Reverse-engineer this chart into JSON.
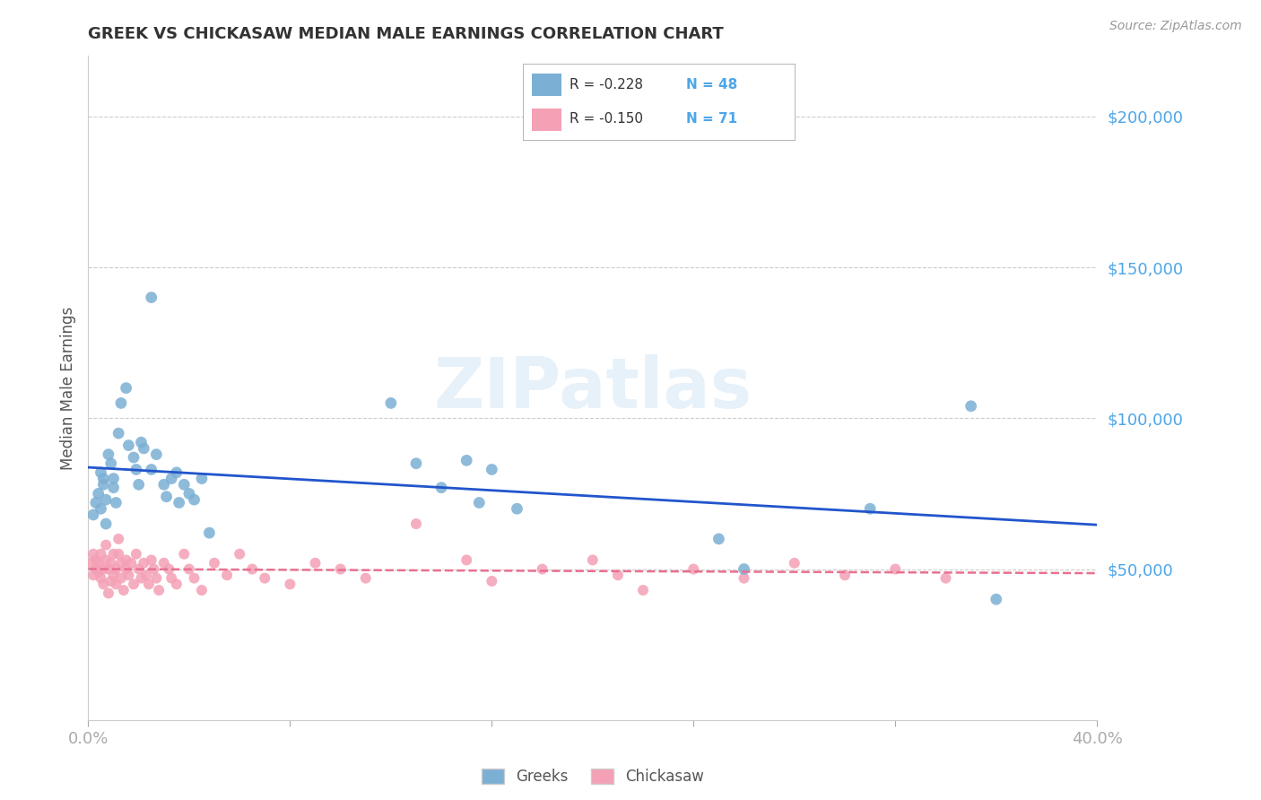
{
  "title": "GREEK VS CHICKASAW MEDIAN MALE EARNINGS CORRELATION CHART",
  "source": "Source: ZipAtlas.com",
  "ylabel": "Median Male Earnings",
  "xlim": [
    0.0,
    0.4
  ],
  "ylim": [
    0,
    220000
  ],
  "yticks": [
    50000,
    100000,
    150000,
    200000
  ],
  "xticks": [
    0.0,
    0.08,
    0.16,
    0.24,
    0.32,
    0.4
  ],
  "xtick_labels": [
    "0.0%",
    "",
    "",
    "",
    "",
    "40.0%"
  ],
  "greek_color": "#7bafd4",
  "chickasaw_color": "#f4a0b5",
  "greek_line_color": "#2255cc",
  "chickasaw_line_color": "#e87090",
  "watermark": "ZIPatlas",
  "legend_r_greek": "-0.228",
  "legend_n_greek": "48",
  "legend_r_chickasaw": "-0.150",
  "legend_n_chickasaw": "71",
  "greek_x": [
    0.002,
    0.003,
    0.004,
    0.005,
    0.005,
    0.006,
    0.006,
    0.007,
    0.007,
    0.008,
    0.009,
    0.01,
    0.01,
    0.011,
    0.012,
    0.013,
    0.015,
    0.016,
    0.018,
    0.019,
    0.02,
    0.021,
    0.022,
    0.025,
    0.025,
    0.027,
    0.03,
    0.031,
    0.033,
    0.035,
    0.036,
    0.038,
    0.04,
    0.042,
    0.045,
    0.048,
    0.12,
    0.13,
    0.14,
    0.15,
    0.155,
    0.16,
    0.17,
    0.25,
    0.26,
    0.31,
    0.35,
    0.36
  ],
  "greek_y": [
    68000,
    72000,
    75000,
    82000,
    70000,
    78000,
    80000,
    65000,
    73000,
    88000,
    85000,
    77000,
    80000,
    72000,
    95000,
    105000,
    110000,
    91000,
    87000,
    83000,
    78000,
    92000,
    90000,
    140000,
    83000,
    88000,
    78000,
    74000,
    80000,
    82000,
    72000,
    78000,
    75000,
    73000,
    80000,
    62000,
    105000,
    85000,
    77000,
    86000,
    72000,
    83000,
    70000,
    60000,
    50000,
    70000,
    104000,
    40000
  ],
  "chickasaw_x": [
    0.001,
    0.002,
    0.002,
    0.003,
    0.003,
    0.004,
    0.004,
    0.005,
    0.005,
    0.006,
    0.006,
    0.007,
    0.007,
    0.008,
    0.008,
    0.009,
    0.009,
    0.01,
    0.01,
    0.011,
    0.011,
    0.012,
    0.012,
    0.013,
    0.013,
    0.014,
    0.015,
    0.015,
    0.016,
    0.017,
    0.018,
    0.019,
    0.02,
    0.021,
    0.022,
    0.023,
    0.024,
    0.025,
    0.026,
    0.027,
    0.028,
    0.03,
    0.032,
    0.033,
    0.035,
    0.038,
    0.04,
    0.042,
    0.045,
    0.05,
    0.055,
    0.06,
    0.065,
    0.07,
    0.08,
    0.09,
    0.1,
    0.11,
    0.13,
    0.15,
    0.16,
    0.18,
    0.2,
    0.21,
    0.22,
    0.24,
    0.26,
    0.28,
    0.3,
    0.32,
    0.34
  ],
  "chickasaw_y": [
    52000,
    55000,
    48000,
    50000,
    53000,
    49000,
    52000,
    47000,
    55000,
    50000,
    45000,
    53000,
    58000,
    42000,
    50000,
    46000,
    52000,
    48000,
    55000,
    50000,
    45000,
    60000,
    55000,
    52000,
    47000,
    43000,
    50000,
    53000,
    48000,
    52000,
    45000,
    55000,
    50000,
    47000,
    52000,
    48000,
    45000,
    53000,
    50000,
    47000,
    43000,
    52000,
    50000,
    47000,
    45000,
    55000,
    50000,
    47000,
    43000,
    52000,
    48000,
    55000,
    50000,
    47000,
    45000,
    52000,
    50000,
    47000,
    65000,
    53000,
    46000,
    50000,
    53000,
    48000,
    43000,
    50000,
    47000,
    52000,
    48000,
    50000,
    47000
  ]
}
